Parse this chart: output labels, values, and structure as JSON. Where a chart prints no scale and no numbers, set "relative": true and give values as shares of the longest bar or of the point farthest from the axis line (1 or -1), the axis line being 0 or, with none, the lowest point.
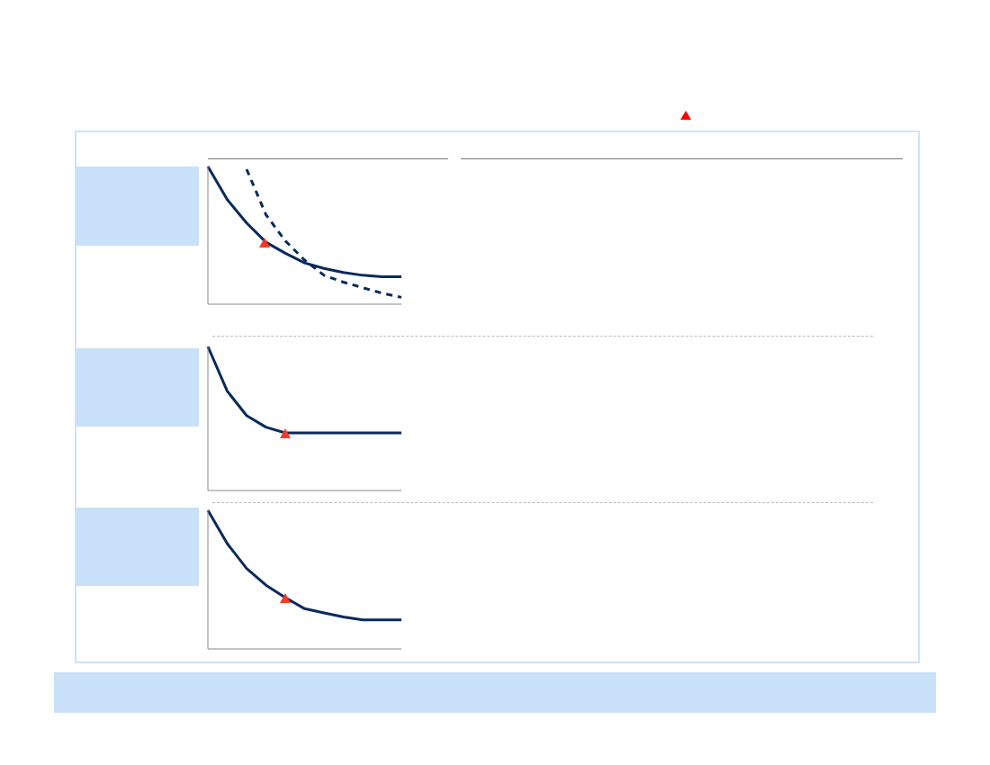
{
  "chart_data": [
    {
      "type": "line",
      "relative": true,
      "categories": [
        null,
        null,
        null,
        null,
        null,
        null,
        null,
        null,
        null,
        null,
        null
      ],
      "marker": "none",
      "legend": false,
      "series": [
        {
          "color": "#0a2a5c",
          "line_style": "solid",
          "values": [
            1.0,
            0.76,
            0.59,
            0.45,
            0.37,
            0.3,
            0.26,
            0.23,
            0.21,
            0.2,
            0.2
          ]
        },
        {
          "color": "#0a2a5c",
          "line_style": "dashed",
          "values": [
            null,
            null,
            0.98,
            0.65,
            0.46,
            0.32,
            0.21,
            0.16,
            0.12,
            0.08,
            0.05
          ]
        }
      ]
    },
    {
      "type": "line",
      "relative": true,
      "categories": [
        null,
        null,
        null,
        null,
        null,
        null,
        null,
        null,
        null,
        null,
        null
      ],
      "marker": "none",
      "legend": false,
      "series": [
        {
          "color": "#0a2a5c",
          "line_style": "solid",
          "values": [
            1.0,
            0.69,
            0.52,
            0.44,
            0.4,
            0.4,
            0.4,
            0.4,
            0.4,
            0.4,
            0.4
          ]
        }
      ]
    },
    {
      "type": "line",
      "relative": true,
      "categories": [
        null,
        null,
        null,
        null,
        null,
        null,
        null,
        null,
        null,
        null,
        null
      ],
      "marker": "none",
      "legend": false,
      "series": [
        {
          "color": "#0a2a5c",
          "line_style": "solid",
          "values": [
            1.0,
            0.76,
            0.58,
            0.46,
            0.37,
            0.29,
            0.26,
            0.23,
            0.21,
            0.21,
            0.21
          ]
        }
      ]
    }
  ]
}
